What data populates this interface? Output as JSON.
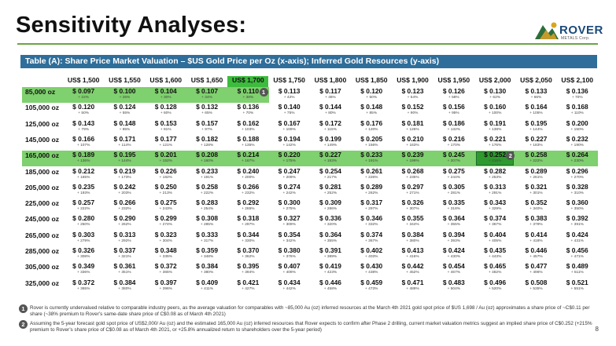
{
  "title": "Sensitivity Analyses:",
  "logo": {
    "word": "ROVER",
    "sub": "METALS Corp."
  },
  "banner": "Table (A): Share Price Market Valuation – $US Gold Price per Oz (x-axis); Inferred Gold Resources (y-axis)",
  "columns": [
    "US$ 1,500",
    "US$ 1,550",
    "US$ 1,600",
    "US$ 1,650",
    "US$ 1,700",
    "US$ 1,750",
    "US$ 1,800",
    "US$ 1,850",
    "US$ 1,900",
    "US$ 1,950",
    "US$ 2,000",
    "US$ 2,050",
    "US$ 2,100"
  ],
  "rows": [
    {
      "label": "85,000 oz",
      "prices": [
        "$ 0.097",
        "$ 0.100",
        "$ 0.104",
        "$ 0.107",
        "$ 0.110",
        "$ 0.113",
        "$ 0.117",
        "$ 0.120",
        "$ 0.123",
        "$ 0.126",
        "$ 0.130",
        "$ 0.133",
        "$ 0.136"
      ],
      "premiums": [
        "+ 22%",
        "+ 26%",
        "+ 30%",
        "+ 34%",
        "+ 38%",
        "+ 42%",
        "+ 46%",
        "+ 50%",
        "+ 54%",
        "+ 58%",
        "+ 62%",
        "+ 66%",
        "+ 70%"
      ]
    },
    {
      "label": "105,000 oz",
      "prices": [
        "$ 0.120",
        "$ 0.124",
        "$ 0.128",
        "$ 0.132",
        "$ 0.136",
        "$ 0.140",
        "$ 0.144",
        "$ 0.148",
        "$ 0.152",
        "$ 0.156",
        "$ 0.160",
        "$ 0.164",
        "$ 0.168"
      ],
      "premiums": [
        "+ 50%",
        "+ 55%",
        "+ 60%",
        "+ 65%",
        "+ 70%",
        "+ 75%",
        "+ 80%",
        "+ 85%",
        "+ 90%",
        "+ 95%",
        "+ 100%",
        "+ 105%",
        "+ 110%"
      ]
    },
    {
      "label": "125,000 oz",
      "prices": [
        "$ 0.143",
        "$ 0.148",
        "$ 0.153",
        "$ 0.157",
        "$ 0.162",
        "$ 0.167",
        "$ 0.172",
        "$ 0.176",
        "$ 0.181",
        "$ 0.186",
        "$ 0.191",
        "$ 0.195",
        "$ 0.200"
      ],
      "premiums": [
        "+ 79%",
        "+ 85%",
        "+ 91%",
        "+ 97%",
        "+ 103%",
        "+ 109%",
        "+ 115%",
        "+ 120%",
        "+ 126%",
        "+ 132%",
        "+ 138%",
        "+ 144%",
        "+ 150%"
      ]
    },
    {
      "label": "145,000 oz",
      "prices": [
        "$ 0.166",
        "$ 0.171",
        "$ 0.177",
        "$ 0.182",
        "$ 0.188",
        "$ 0.194",
        "$ 0.199",
        "$ 0.205",
        "$ 0.210",
        "$ 0.216",
        "$ 0.221",
        "$ 0.227",
        "$ 0.232"
      ],
      "premiums": [
        "+ 107%",
        "+ 114%",
        "+ 121%",
        "+ 128%",
        "+ 135%",
        "+ 142%",
        "+ 149%",
        "+ 156%",
        "+ 163%",
        "+ 170%",
        "+ 176%",
        "+ 183%",
        "+ 190%"
      ]
    },
    {
      "label": "165,000 oz",
      "prices": [
        "$ 0.189",
        "$ 0.195",
        "$ 0.201",
        "$ 0.208",
        "$ 0.214",
        "$ 0.220",
        "$ 0.227",
        "$ 0.233",
        "$ 0.239",
        "$ 0.245",
        "$ 0.252",
        "$ 0.258",
        "$ 0.264"
      ],
      "premiums": [
        "+ 136%",
        "+ 144%",
        "+ 152%",
        "+ 160%",
        "+ 167%",
        "+ 175%",
        "+ 183%",
        "+ 191%",
        "+ 199%",
        "+ 207%",
        "+ 215%",
        "+ 222%",
        "+ 230%"
      ]
    },
    {
      "label": "185,000 oz",
      "prices": [
        "$ 0.212",
        "$ 0.219",
        "$ 0.226",
        "$ 0.233",
        "$ 0.240",
        "$ 0.247",
        "$ 0.254",
        "$ 0.261",
        "$ 0.268",
        "$ 0.275",
        "$ 0.282",
        "$ 0.289",
        "$ 0.296"
      ],
      "premiums": [
        "+ 165%",
        "+ 173%",
        "+ 182%",
        "+ 191%",
        "+ 200%",
        "+ 209%",
        "+ 217%",
        "+ 226%",
        "+ 235%",
        "+ 244%",
        "+ 253%",
        "+ 261%",
        "+ 270%"
      ]
    },
    {
      "label": "205,000 oz",
      "prices": [
        "$ 0.235",
        "$ 0.242",
        "$ 0.250",
        "$ 0.258",
        "$ 0.266",
        "$ 0.274",
        "$ 0.281",
        "$ 0.289",
        "$ 0.297",
        "$ 0.305",
        "$ 0.313",
        "$ 0.321",
        "$ 0.328"
      ],
      "premiums": [
        "+ 193%",
        "+ 203%",
        "+ 213%",
        "+ 222%",
        "+ 232%",
        "+ 242%",
        "+ 252%",
        "+ 262%",
        "+ 271%",
        "+ 281%",
        "+ 291%",
        "+ 301%",
        "+ 310%"
      ]
    },
    {
      "label": "225,000 oz",
      "prices": [
        "$ 0.257",
        "$ 0.266",
        "$ 0.275",
        "$ 0.283",
        "$ 0.292",
        "$ 0.300",
        "$ 0.309",
        "$ 0.317",
        "$ 0.326",
        "$ 0.335",
        "$ 0.343",
        "$ 0.352",
        "$ 0.360"
      ],
      "premiums": [
        "+ 222%",
        "+ 232%",
        "+ 243%",
        "+ 254%",
        "+ 265%",
        "+ 275%",
        "+ 286%",
        "+ 297%",
        "+ 307%",
        "+ 318%",
        "+ 329%",
        "+ 340%",
        "+ 350%"
      ]
    },
    {
      "label": "245,000 oz",
      "prices": [
        "$ 0.280",
        "$ 0.290",
        "$ 0.299",
        "$ 0.308",
        "$ 0.318",
        "$ 0.327",
        "$ 0.336",
        "$ 0.346",
        "$ 0.355",
        "$ 0.364",
        "$ 0.374",
        "$ 0.383",
        "$ 0.392"
      ],
      "premiums": [
        "+ 250%",
        "+ 262%",
        "+ 274%",
        "+ 285%",
        "+ 297%",
        "+ 309%",
        "+ 320%",
        "+ 332%",
        "+ 344%",
        "+ 355%",
        "+ 367%",
        "+ 379%",
        "+ 391%"
      ]
    },
    {
      "label": "265,000 oz",
      "prices": [
        "$ 0.303",
        "$ 0.313",
        "$ 0.323",
        "$ 0.333",
        "$ 0.344",
        "$ 0.354",
        "$ 0.364",
        "$ 0.374",
        "$ 0.384",
        "$ 0.394",
        "$ 0.404",
        "$ 0.414",
        "$ 0.424"
      ],
      "premiums": [
        "+ 279%",
        "+ 292%",
        "+ 304%",
        "+ 317%",
        "+ 330%",
        "+ 342%",
        "+ 355%",
        "+ 367%",
        "+ 380%",
        "+ 393%",
        "+ 405%",
        "+ 418%",
        "+ 431%"
      ]
    },
    {
      "label": "285,000 oz",
      "prices": [
        "$ 0.326",
        "$ 0.337",
        "$ 0.348",
        "$ 0.359",
        "$ 0.370",
        "$ 0.380",
        "$ 0.391",
        "$ 0.402",
        "$ 0.413",
        "$ 0.424",
        "$ 0.435",
        "$ 0.446",
        "$ 0.456"
      ],
      "premiums": [
        "+ 308%",
        "+ 321%",
        "+ 335%",
        "+ 348%",
        "+ 362%",
        "+ 376%",
        "+ 389%",
        "+ 403%",
        "+ 416%",
        "+ 430%",
        "+ 443%",
        "+ 457%",
        "+ 471%"
      ]
    },
    {
      "label": "305,000 oz",
      "prices": [
        "$ 0.349",
        "$ 0.361",
        "$ 0.372",
        "$ 0.384",
        "$ 0.395",
        "$ 0.407",
        "$ 0.419",
        "$ 0.430",
        "$ 0.442",
        "$ 0.454",
        "$ 0.465",
        "$ 0.477",
        "$ 0.489"
      ],
      "premiums": [
        "+ 336%",
        "+ 351%",
        "+ 365%",
        "+ 380%",
        "+ 394%",
        "+ 409%",
        "+ 423%",
        "+ 438%",
        "+ 452%",
        "+ 467%",
        "+ 482%",
        "+ 496%",
        "+ 511%"
      ]
    },
    {
      "label": "325,000 oz",
      "prices": [
        "$ 0.372",
        "$ 0.384",
        "$ 0.397",
        "$ 0.409",
        "$ 0.421",
        "$ 0.434",
        "$ 0.446",
        "$ 0.459",
        "$ 0.471",
        "$ 0.483",
        "$ 0.496",
        "$ 0.508",
        "$ 0.521"
      ],
      "premiums": [
        "+ 365%",
        "+ 380%",
        "+ 396%",
        "+ 411%",
        "+ 427%",
        "+ 442%",
        "+ 458%",
        "+ 473%",
        "+ 489%",
        "+ 504%",
        "+ 520%",
        "+ 535%",
        "+ 551%"
      ]
    }
  ],
  "badges": {
    "one": "1",
    "two": "2"
  },
  "notes": [
    {
      "badge": "1",
      "text": "Rover is currently undervalued relative to comparable industry peers, as the average valuation for comparables with ~85,000 Au (oz) inferred resources at the March 4th 2021 gold spot price of $US 1,698 / Au (oz) approximates a share price of ~C$0.11 per share (~38% premium to Rover’s same-date share price of C$0.08 as of March 4th 2021)"
    },
    {
      "badge": "2",
      "text": "Assuming the 5-year forecast gold spot price of US$2,000/ Au (oz) and the estimated 165,000 Au (oz) inferred resources that Rover expects to confirm after Phase 2 drilling, current market valuation metrics suggest an implied share price of C$0.252 (+215% premium to Rover’s share price of C$0.08 as of March 4th 2021, or +25.8% annualized return to shareholders over the 5-year period)"
    }
  ],
  "page_number": "8",
  "colors": {
    "banner": "#2f6e9a",
    "rule": "#6aa545",
    "highlight_col": "#3dbb3d",
    "highlight_row": "#7fd06e",
    "highlight_cell": "#2e9a2e"
  }
}
